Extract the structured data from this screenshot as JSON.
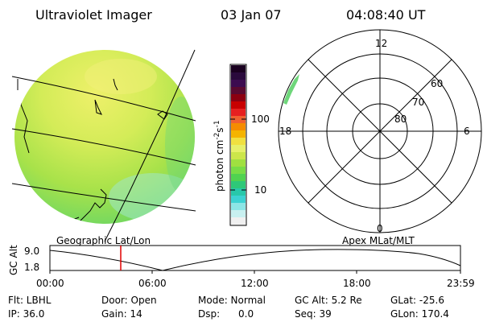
{
  "header": {
    "instrument": "Ultraviolet Imager",
    "date": "03 Jan 07",
    "time": "04:08:40 UT"
  },
  "colorbar": {
    "unit_label": "photon cm",
    "unit_exp1": "-2",
    "unit_s": "s",
    "unit_exp2": "-1",
    "tick_100": "100",
    "tick_10": "10",
    "colors": [
      "#1a0020",
      "#2a0a3c",
      "#3c0c50",
      "#5a0a30",
      "#8c0010",
      "#c80000",
      "#e62020",
      "#f06030",
      "#f58c00",
      "#f5b400",
      "#f0e040",
      "#e6f06a",
      "#cce64a",
      "#a0e040",
      "#78dc46",
      "#50d250",
      "#2ec878",
      "#28c8aa",
      "#3cd2d2",
      "#8ce6e6",
      "#c8f0f0",
      "#f0f0f0"
    ]
  },
  "polar": {
    "label_12": "12",
    "label_6": "6",
    "label_0": "0",
    "label_18": "18",
    "lat_60": "60",
    "lat_70": "70",
    "lat_80": "80"
  },
  "image_panel": {
    "fill_color": "#c8ec5a"
  },
  "subtitles": {
    "left": "Geographic Lat/Lon",
    "right": "Apex MLat/MLT"
  },
  "altitude_plot": {
    "ylabel": "GC Alt",
    "ytick_top": "9.0",
    "ytick_bottom": "1.8",
    "xticks": [
      "00:00",
      "06:00",
      "12:00",
      "18:00",
      "23:59"
    ],
    "marker_time_hours": 4.14
  },
  "info": {
    "flt": "Flt: LBHL",
    "ip": "IP: 36.0",
    "door": "Door: Open",
    "gain": "Gain: 14",
    "mode": "Mode: Normal",
    "dsp": "Dsp:      0.0",
    "gc_alt": "GC Alt: 5.2 Re",
    "seq": "Seq: 39",
    "glat": "GLat: -25.6",
    "glon": "GLon: 170.4"
  }
}
